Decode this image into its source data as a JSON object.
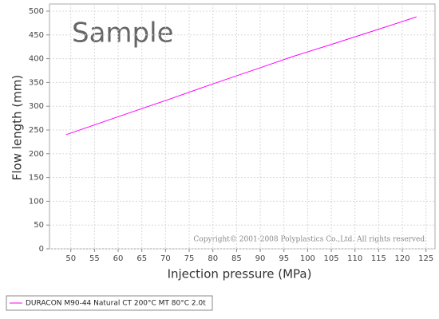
{
  "chart_data": {
    "type": "line",
    "xlabel": "Injection pressure (MPa)",
    "ylabel": "Flow length (mm)",
    "watermark": "Sample",
    "copyright": "Copyright© 2001-2008 Polyplastics Co.,Ltd. All rights reserved.",
    "x": [
      49,
      60,
      70,
      80,
      90,
      97,
      105,
      115,
      123
    ],
    "series": [
      {
        "name": "DURACON M90-44 Natural CT 200°C MT 80°C 2.0t",
        "color": "#ff00ff",
        "values": [
          240,
          278,
          312,
          347,
          381,
          405,
          430,
          462,
          488
        ]
      }
    ],
    "xlim": [
      45.5,
      126.9
    ],
    "ylim": [
      0,
      500
    ],
    "xticks": [
      50,
      55,
      60,
      65,
      70,
      75,
      80,
      85,
      90,
      95,
      100,
      105,
      110,
      115,
      120,
      125
    ],
    "yticks": [
      0,
      50,
      100,
      150,
      200,
      250,
      300,
      350,
      400,
      450,
      500
    ],
    "grid": true
  }
}
